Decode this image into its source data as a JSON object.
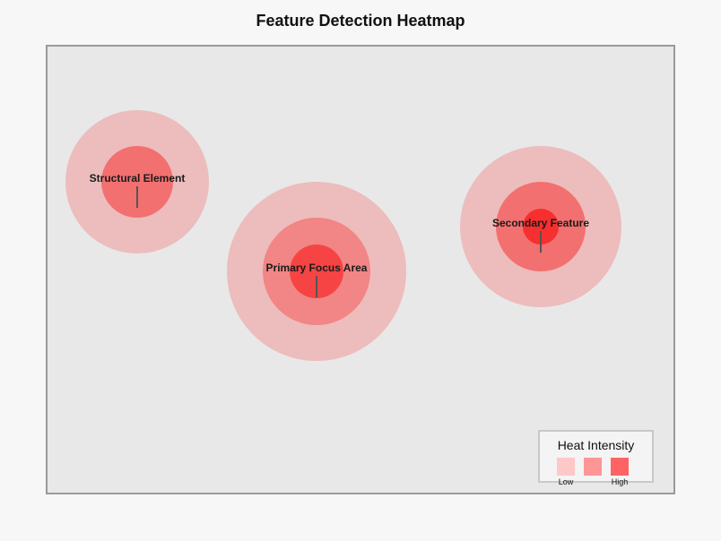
{
  "title": "Feature Detection Heatmap",
  "colors": {
    "background": "#f7f7f7",
    "canvas": "#e8e8e8",
    "outer_glow": "#edbcbc",
    "mid_glow": "#f28585",
    "core_hot": "#f64444",
    "core_hottest": "#f72f2f"
  },
  "features": [
    {
      "label": "Structural Element",
      "intensity": "high"
    },
    {
      "label": "Primary Focus Area",
      "intensity": "highest"
    },
    {
      "label": "Secondary Feature",
      "intensity": "highest"
    }
  ],
  "legend": {
    "title": "Heat Intensity",
    "swatch_colors": [
      "#ffc8c8",
      "#fe9696",
      "#ff6464"
    ],
    "low_label": "Low",
    "high_label": "High"
  }
}
